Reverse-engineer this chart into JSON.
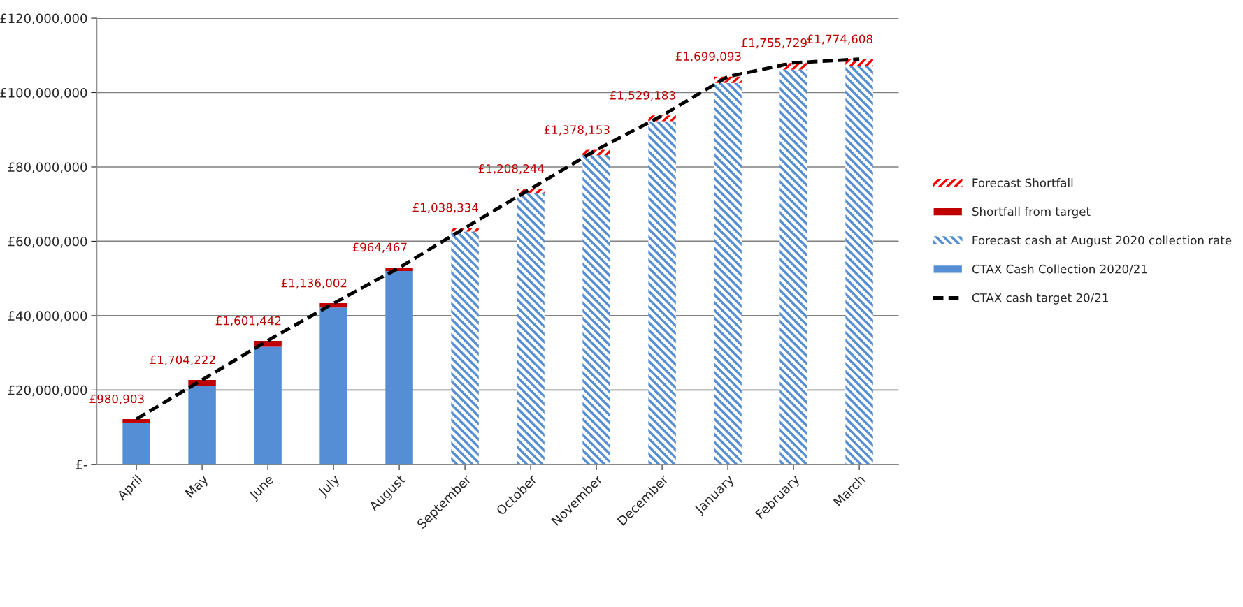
{
  "chart_data": {
    "type": "bar",
    "stacked": true,
    "categories": [
      "April",
      "May",
      "June",
      "July",
      "August",
      "September",
      "October",
      "November",
      "December",
      "January",
      "February",
      "March"
    ],
    "series": [
      {
        "name": "CTAX Cash Collection 2020/21",
        "color": "#558ed5",
        "values": [
          11200000,
          21000000,
          31600000,
          42200000,
          52000000,
          null,
          null,
          null,
          null,
          null,
          null,
          null
        ]
      },
      {
        "name": "Forecast cash at August 2020 collection rate",
        "color": "#558ed5",
        "values": [
          null,
          null,
          null,
          null,
          null,
          62600000,
          72900000,
          83200000,
          92300000,
          102600000,
          106200000,
          107200000
        ]
      },
      {
        "name": "Shortfall from target",
        "color": "#c00000",
        "values": [
          980903,
          1704222,
          1601442,
          1136002,
          964467,
          null,
          null,
          null,
          null,
          null,
          null,
          null
        ],
        "value_labels": [
          "£980,903",
          "£1,704,222",
          "£1,601,442",
          "£1,136,002",
          "£964,467",
          null,
          null,
          null,
          null,
          null,
          null,
          null
        ]
      },
      {
        "name": "Forecast Shortfall",
        "color": "#ff0000",
        "values": [
          null,
          null,
          null,
          null,
          null,
          1038334,
          1208244,
          1378153,
          1529183,
          1699093,
          1755729,
          1774608
        ],
        "value_labels": [
          null,
          null,
          null,
          null,
          null,
          "£1,038,334",
          "£1,208,244",
          "£1,378,153",
          "£1,529,183",
          "£1,699,093",
          "£1,755,729",
          "£1,774,608"
        ]
      },
      {
        "name": "CTAX cash target 20/21",
        "type": "line",
        "color": "#000000",
        "line_style": "dashed",
        "values": [
          12200000,
          22700000,
          33300000,
          43300000,
          52900000,
          63600000,
          74100000,
          84600000,
          93800000,
          104300000,
          108000000,
          109000000
        ]
      }
    ],
    "ylim": [
      0,
      120000000
    ],
    "yticks": [
      {
        "value": 0,
        "label": "£-"
      },
      {
        "value": 20000000,
        "label": "£20,000,000"
      },
      {
        "value": 40000000,
        "label": "£40,000,000"
      },
      {
        "value": 60000000,
        "label": "£60,000,000"
      },
      {
        "value": 80000000,
        "label": "£80,000,000"
      },
      {
        "value": 100000000,
        "label": "£100,000,000"
      },
      {
        "value": 120000000,
        "label": "£120,000,000"
      }
    ],
    "grid": "y",
    "legend": "right"
  }
}
